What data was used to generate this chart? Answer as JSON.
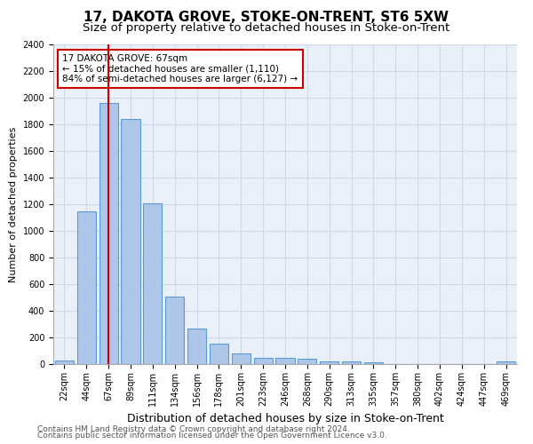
{
  "title": "17, DAKOTA GROVE, STOKE-ON-TRENT, ST6 5XW",
  "subtitle": "Size of property relative to detached houses in Stoke-on-Trent",
  "xlabel": "Distribution of detached houses by size in Stoke-on-Trent",
  "ylabel": "Number of detached properties",
  "categories": [
    "22sqm",
    "44sqm",
    "67sqm",
    "89sqm",
    "111sqm",
    "134sqm",
    "156sqm",
    "178sqm",
    "201sqm",
    "223sqm",
    "246sqm",
    "268sqm",
    "290sqm",
    "313sqm",
    "335sqm",
    "357sqm",
    "380sqm",
    "402sqm",
    "424sqm",
    "447sqm",
    "469sqm"
  ],
  "values": [
    30,
    1150,
    1960,
    1840,
    1210,
    510,
    265,
    155,
    80,
    50,
    45,
    40,
    20,
    20,
    15,
    0,
    0,
    0,
    0,
    0,
    20
  ],
  "bar_color": "#aec6e8",
  "bar_edge_color": "#5b9bd5",
  "vline_x_index": 2,
  "vline_color": "#cc0000",
  "annotation_line1": "17 DAKOTA GROVE: 67sqm",
  "annotation_line2": "← 15% of detached houses are smaller (1,110)",
  "annotation_line3": "84% of semi-detached houses are larger (6,127) →",
  "annotation_box_color": "#cc0000",
  "ylim": [
    0,
    2400
  ],
  "yticks": [
    0,
    200,
    400,
    600,
    800,
    1000,
    1200,
    1400,
    1600,
    1800,
    2000,
    2200,
    2400
  ],
  "grid_color": "#d0d8e8",
  "bg_color": "#eaf0f8",
  "footer1": "Contains HM Land Registry data © Crown copyright and database right 2024.",
  "footer2": "Contains public sector information licensed under the Open Government Licence v3.0.",
  "title_fontsize": 11,
  "subtitle_fontsize": 9.5,
  "xlabel_fontsize": 9,
  "ylabel_fontsize": 8,
  "tick_fontsize": 7,
  "annotation_fontsize": 7.5,
  "footer_fontsize": 6.5
}
